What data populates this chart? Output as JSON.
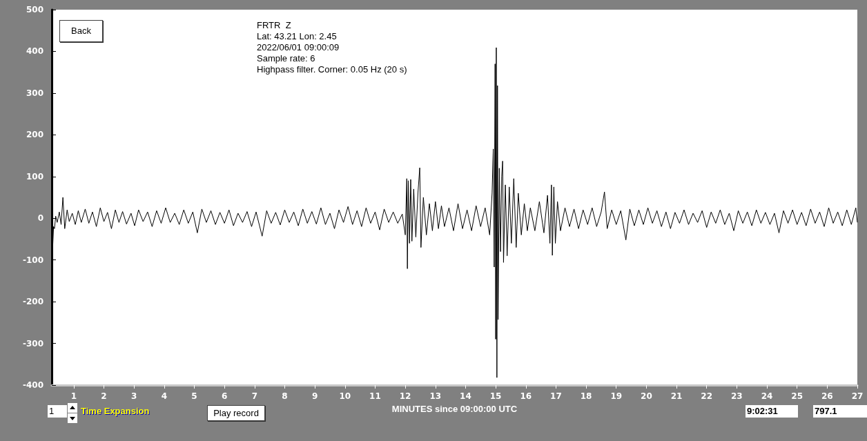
{
  "chart_data": {
    "type": "line",
    "title": "FRTR  Z",
    "xlabel": "MINUTES since 09:00:00 UTC",
    "annotations": [
      "Lat: 43.21 Lon: 2.45",
      "2022/06/01 09:00:09",
      "Sample rate: 6",
      "Highpass filter. Corner: 0.05 Hz (20 s)",
      "Back",
      "1",
      "Time Expansion",
      "Play record",
      "9:02:31",
      "797.1"
    ],
    "xlim": [
      0.27,
      27.0
    ],
    "xticks": [
      1,
      2,
      3,
      4,
      5,
      6,
      7,
      8,
      9,
      10,
      11,
      12,
      13,
      14,
      15,
      16,
      17,
      18,
      19,
      20,
      21,
      22,
      23,
      24,
      25,
      26,
      27
    ],
    "ylim": [
      -400,
      500
    ],
    "yticks": [
      -400,
      -300,
      -200,
      -100,
      0,
      100,
      200,
      300,
      400,
      500
    ],
    "grid": false,
    "marker": "none",
    "series": [
      {
        "color": "#000000",
        "x": [
          0.27,
          0.3,
          0.33,
          0.36,
          0.4,
          0.45,
          0.52,
          0.58,
          0.64,
          0.7,
          0.78,
          0.85,
          0.95,
          1.05,
          1.15,
          1.25,
          1.38,
          1.5,
          1.62,
          1.75,
          1.88,
          2.0,
          2.12,
          2.25,
          2.38,
          2.5,
          2.62,
          2.75,
          2.9,
          3.02,
          3.15,
          3.3,
          3.45,
          3.6,
          3.75,
          3.9,
          4.05,
          4.2,
          4.35,
          4.5,
          4.65,
          4.8,
          4.95,
          5.1,
          5.25,
          5.4,
          5.55,
          5.7,
          5.85,
          6.0,
          6.15,
          6.3,
          6.45,
          6.6,
          6.75,
          6.9,
          7.05,
          7.25,
          7.4,
          7.55,
          7.7,
          7.85,
          8.0,
          8.15,
          8.3,
          8.45,
          8.6,
          8.75,
          8.9,
          9.05,
          9.2,
          9.35,
          9.5,
          9.65,
          9.8,
          9.95,
          10.1,
          10.25,
          10.4,
          10.55,
          10.7,
          10.85,
          11.0,
          11.15,
          11.3,
          11.45,
          11.6,
          11.75,
          11.9,
          12.0,
          12.05,
          12.07,
          12.1,
          12.14,
          12.18,
          12.22,
          12.28,
          12.35,
          12.42,
          12.48,
          12.52,
          12.6,
          12.7,
          12.8,
          12.9,
          13.0,
          13.1,
          13.2,
          13.3,
          13.45,
          13.6,
          13.75,
          13.9,
          14.05,
          14.2,
          14.35,
          14.5,
          14.65,
          14.8,
          14.88,
          14.92,
          14.95,
          14.98,
          15.0,
          15.02,
          15.04,
          15.06,
          15.08,
          15.12,
          15.16,
          15.2,
          15.23,
          15.26,
          15.32,
          15.38,
          15.45,
          15.52,
          15.6,
          15.68,
          15.75,
          15.85,
          15.95,
          16.05,
          16.15,
          16.3,
          16.45,
          16.6,
          16.72,
          16.8,
          16.85,
          16.88,
          16.93,
          16.98,
          17.05,
          17.15,
          17.3,
          17.45,
          17.6,
          17.75,
          17.9,
          18.05,
          18.2,
          18.35,
          18.5,
          18.61,
          18.7,
          18.85,
          19.0,
          19.15,
          19.32,
          19.45,
          19.6,
          19.75,
          19.9,
          20.05,
          20.2,
          20.35,
          20.5,
          20.65,
          20.8,
          20.95,
          21.1,
          21.25,
          21.4,
          21.55,
          21.7,
          21.85,
          22.0,
          22.15,
          22.3,
          22.45,
          22.6,
          22.75,
          22.9,
          23.05,
          23.2,
          23.35,
          23.5,
          23.65,
          23.8,
          23.95,
          24.1,
          24.25,
          24.4,
          24.55,
          24.7,
          24.85,
          25.0,
          25.15,
          25.3,
          25.45,
          25.6,
          25.75,
          25.9,
          26.05,
          26.2,
          26.35,
          26.5,
          26.65,
          26.8,
          26.95,
          27.0
        ],
        "values": [
          -57,
          -70,
          -20,
          -25,
          5,
          -10,
          15,
          -15,
          50,
          -25,
          20,
          -8,
          12,
          -15,
          18,
          -10,
          22,
          -12,
          15,
          -20,
          25,
          -8,
          14,
          -25,
          20,
          -10,
          16,
          -14,
          12,
          -18,
          20,
          -8,
          15,
          -20,
          18,
          -12,
          25,
          -10,
          12,
          -15,
          20,
          -12,
          15,
          -35,
          22,
          -10,
          18,
          -15,
          14,
          -12,
          20,
          -18,
          12,
          -10,
          16,
          -20,
          15,
          -43,
          18,
          -12,
          14,
          -16,
          20,
          -10,
          15,
          -18,
          22,
          -12,
          16,
          -14,
          25,
          -15,
          12,
          -25,
          20,
          -10,
          28,
          -15,
          18,
          -20,
          25,
          -12,
          15,
          -28,
          22,
          -10,
          15,
          -12,
          10,
          -40,
          95,
          -121,
          90,
          -60,
          93,
          -55,
          70,
          -45,
          60,
          121,
          -70,
          50,
          -40,
          35,
          -30,
          40,
          -25,
          30,
          -20,
          25,
          -30,
          35,
          -25,
          20,
          -30,
          30,
          -20,
          25,
          -40,
          60,
          166,
          -117,
          370,
          -290,
          409,
          -382,
          318,
          -243,
          120,
          -80,
          100,
          137,
          -106,
          80,
          -90,
          75,
          -60,
          95,
          -70,
          60,
          -40,
          35,
          -30,
          25,
          -30,
          40,
          -35,
          55,
          -60,
          80,
          -89,
          75,
          -60,
          40,
          -30,
          25,
          -20,
          22,
          -25,
          20,
          -15,
          25,
          -20,
          15,
          63,
          -25,
          20,
          -15,
          18,
          -52,
          22,
          -18,
          20,
          -15,
          25,
          -12,
          18,
          -20,
          15,
          -25,
          14,
          -12,
          20,
          -15,
          12,
          -10,
          18,
          -22,
          15,
          -12,
          20,
          -15,
          12,
          -30,
          18,
          -12,
          15,
          -18,
          20,
          -12,
          14,
          -15,
          12,
          -35,
          18,
          -12,
          20,
          -15,
          14,
          -18,
          22,
          -12,
          15,
          -20,
          25,
          -12,
          15,
          -18,
          20,
          -15,
          25,
          -10
        ]
      }
    ]
  }
}
